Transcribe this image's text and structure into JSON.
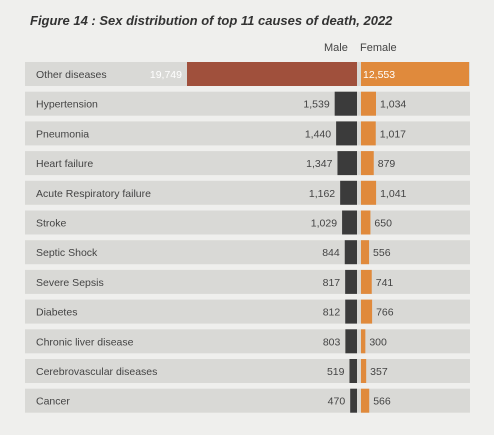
{
  "title": "Figure 14 : Sex distribution of top 11 causes of death, 2022",
  "headers": {
    "male": "Male",
    "female": "Female"
  },
  "colors": {
    "male": "#a0503c",
    "male_small": "#3b3b3b",
    "female": "#e08a3c",
    "row_bg": "#d9d9d6"
  },
  "chart_data": {
    "type": "bar",
    "orientation": "horizontal",
    "title": "Figure 14 : Sex distribution of top 11 causes of death, 2022",
    "categories": [
      "Other diseases",
      "Hypertension",
      "Pneumonia",
      "Heart failure",
      "Acute Respiratory failure",
      "Stroke",
      "Septic Shock",
      "Severe Sepsis",
      "Diabetes",
      "Chronic liver disease",
      "Cerebrovascular diseases",
      "Cancer"
    ],
    "series": [
      {
        "name": "Male",
        "values": [
          19749,
          1539,
          1440,
          1347,
          1162,
          1029,
          844,
          817,
          812,
          803,
          519,
          470
        ],
        "labels": [
          "19,749",
          "1,539",
          "1,440",
          "1,347",
          "1,162",
          "1,029",
          "844",
          "817",
          "812",
          "803",
          "519",
          "470"
        ]
      },
      {
        "name": "Female",
        "values": [
          12553,
          1034,
          1017,
          879,
          1041,
          650,
          556,
          741,
          766,
          300,
          357,
          566
        ],
        "labels": [
          "12,553",
          "1,034",
          "1,017",
          "879",
          "1,041",
          "650",
          "556",
          "741",
          "766",
          "300",
          "357",
          "566"
        ]
      }
    ]
  }
}
